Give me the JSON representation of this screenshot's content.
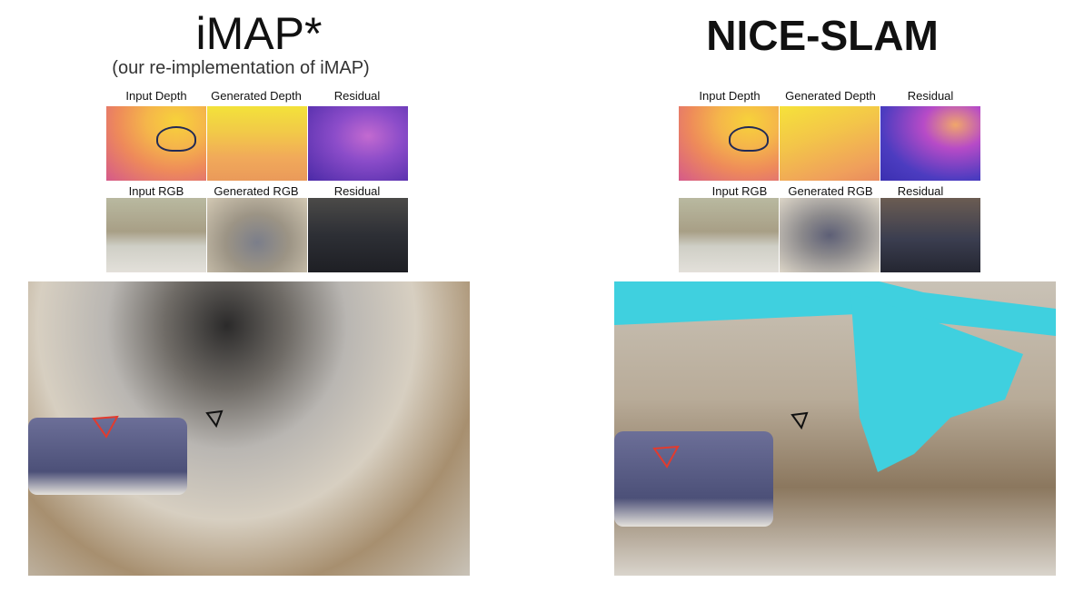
{
  "left_panel": {
    "title": "iMAP*",
    "subtitle": "(our re-implementation of iMAP)",
    "depth_labels": [
      "Input Depth",
      "Generated Depth",
      "Residual"
    ],
    "rgb_labels": [
      "Input RGB",
      "Generated RGB",
      "Residual"
    ]
  },
  "right_panel": {
    "title": "NICE-SLAM",
    "depth_labels": [
      "Input Depth",
      "Generated Depth",
      "Residual"
    ],
    "rgb_labels": [
      "Input RGB",
      "Generated RGB",
      "Residual"
    ]
  },
  "colors": {
    "camera_frustum_current": "#e23b2e",
    "camera_frustum_other": "#111111",
    "nice_unobserved_region": "#3fd0df"
  }
}
